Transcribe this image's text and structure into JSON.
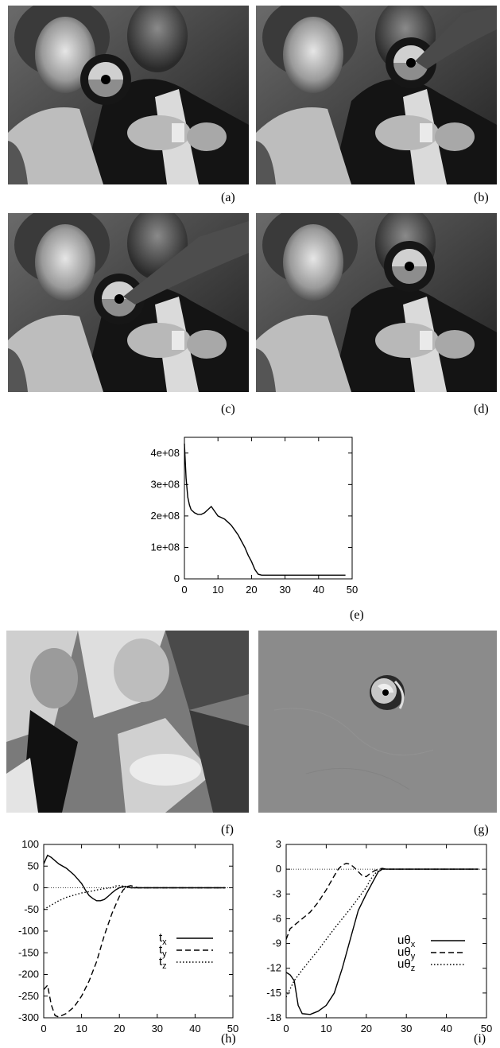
{
  "panel_labels": [
    "(a)",
    "(b)",
    "(c)",
    "(d)",
    "(e)",
    "(f)",
    "(g)",
    "(h)",
    "(i)"
  ],
  "photos": [
    {
      "id": "a",
      "content": "photo-frame-a"
    },
    {
      "id": "b",
      "content": "photo-frame-b"
    },
    {
      "id": "c",
      "content": "photo-frame-c"
    },
    {
      "id": "d",
      "content": "photo-frame-d"
    },
    {
      "id": "f",
      "content": "difference-image"
    },
    {
      "id": "g",
      "content": "residual-image"
    }
  ],
  "chart_data": [
    {
      "id": "e",
      "type": "line",
      "xlim": [
        0,
        50
      ],
      "ylim": [
        0,
        450000000
      ],
      "x_ticks": [
        "0",
        "10",
        "20",
        "30",
        "40",
        "50"
      ],
      "y_ticks": [
        "0",
        "1e+08",
        "2e+08",
        "3e+08",
        "4e+08"
      ],
      "grid": false,
      "series": [
        {
          "x": [
            0,
            0.5,
            1,
            1.5,
            2,
            3,
            4,
            5,
            6,
            7,
            8,
            9,
            10,
            11,
            12,
            13,
            14,
            15,
            16,
            17,
            18,
            19,
            20,
            21,
            22,
            23,
            25,
            30,
            40,
            48
          ],
          "y": [
            430000000,
            320000000,
            260000000,
            235000000,
            220000000,
            210000000,
            205000000,
            205000000,
            210000000,
            220000000,
            230000000,
            215000000,
            200000000,
            195000000,
            190000000,
            180000000,
            170000000,
            155000000,
            140000000,
            120000000,
            100000000,
            75000000,
            55000000,
            30000000,
            15000000,
            12000000,
            12000000,
            12000000,
            12000000,
            12000000
          ]
        }
      ]
    },
    {
      "id": "h",
      "type": "line",
      "xlim": [
        0,
        50
      ],
      "ylim": [
        -300,
        100
      ],
      "x_ticks": [
        "0",
        "10",
        "20",
        "30",
        "40",
        "50"
      ],
      "y_ticks": [
        "100",
        "50",
        "0",
        "-50",
        "-100",
        "-150",
        "-200",
        "-250",
        "-300"
      ],
      "legend_position": "center-right",
      "zero_line": true,
      "series": [
        {
          "name": "t_x",
          "label_main": "t",
          "label_sub": "x",
          "dash": "solid",
          "x": [
            0,
            1,
            2,
            4,
            6,
            8,
            10,
            11,
            12,
            13,
            14,
            15,
            16,
            17,
            18,
            19,
            20,
            21,
            22,
            23,
            25,
            30,
            40,
            48
          ],
          "y": [
            55,
            75,
            70,
            55,
            45,
            30,
            10,
            -5,
            -18,
            -25,
            -30,
            -30,
            -27,
            -20,
            -12,
            -5,
            0,
            3,
            2,
            0,
            0,
            0,
            0,
            0
          ]
        },
        {
          "name": "t_y",
          "label_main": "t",
          "label_sub": "y",
          "dash": "dashed",
          "x": [
            0,
            1,
            2,
            3,
            4,
            6,
            8,
            10,
            12,
            14,
            16,
            18,
            19,
            20,
            21,
            22,
            23,
            25,
            30,
            40,
            48
          ],
          "y": [
            -235,
            -225,
            -270,
            -295,
            -298,
            -290,
            -275,
            -250,
            -215,
            -170,
            -110,
            -60,
            -40,
            -20,
            -5,
            3,
            5,
            0,
            0,
            0,
            0
          ]
        },
        {
          "name": "t_z",
          "label_main": "t",
          "label_sub": "z",
          "dash": "dotted",
          "x": [
            0,
            1,
            2,
            4,
            6,
            8,
            10,
            12,
            14,
            16,
            18,
            19,
            20,
            22,
            23,
            25,
            30,
            40,
            48
          ],
          "y": [
            -50,
            -45,
            -40,
            -30,
            -22,
            -17,
            -12,
            -9,
            -5,
            -2,
            0,
            4,
            5,
            3,
            0,
            0,
            0,
            0,
            0
          ]
        }
      ]
    },
    {
      "id": "i",
      "type": "line",
      "xlim": [
        0,
        50
      ],
      "ylim": [
        -18,
        3
      ],
      "x_ticks": [
        "0",
        "10",
        "20",
        "30",
        "40",
        "50"
      ],
      "y_ticks": [
        "3",
        "0",
        "-3",
        "-6",
        "-9",
        "-12",
        "-15",
        "-18"
      ],
      "legend_position": "center-right",
      "zero_line": true,
      "series": [
        {
          "name": "uθ_x",
          "label_main": "uθ",
          "label_sub": "x",
          "dash": "solid",
          "x": [
            0,
            1,
            2,
            3,
            4,
            6,
            8,
            10,
            12,
            14,
            16,
            18,
            20,
            22,
            23,
            24,
            25,
            30,
            40,
            48
          ],
          "y": [
            -12.5,
            -12.8,
            -13.5,
            -16.5,
            -17.5,
            -17.6,
            -17.2,
            -16.5,
            -15.0,
            -12.0,
            -8.5,
            -5.0,
            -3.0,
            -1.2,
            -0.3,
            0,
            0,
            0,
            0,
            0
          ]
        },
        {
          "name": "uθ_y",
          "label_main": "uθ",
          "label_sub": "y",
          "dash": "dashed",
          "x": [
            0,
            1,
            2,
            4,
            6,
            8,
            10,
            12,
            13,
            14,
            15,
            16,
            17,
            18,
            19,
            20,
            21,
            22,
            23,
            24,
            25,
            30,
            40,
            48
          ],
          "y": [
            -8.5,
            -7.2,
            -6.8,
            -6.0,
            -5.2,
            -4.0,
            -2.5,
            -0.8,
            0,
            0.5,
            0.7,
            0.6,
            0.2,
            -0.3,
            -0.8,
            -0.9,
            -0.5,
            -0.2,
            0,
            0.1,
            0,
            0,
            0,
            0
          ]
        },
        {
          "name": "uθ_z",
          "label_main": "uθ",
          "label_sub": "z",
          "dash": "dotted",
          "x": [
            0,
            1,
            2,
            4,
            6,
            8,
            10,
            12,
            14,
            16,
            18,
            20,
            21,
            22,
            23,
            24,
            25,
            30,
            40,
            48
          ],
          "y": [
            -15.5,
            -14.5,
            -13.5,
            -12.2,
            -11.0,
            -9.8,
            -8.5,
            -7.2,
            -6.0,
            -4.8,
            -3.5,
            -2.2,
            -1.3,
            -0.6,
            -0.2,
            0,
            0,
            0,
            0,
            0
          ]
        }
      ]
    }
  ]
}
